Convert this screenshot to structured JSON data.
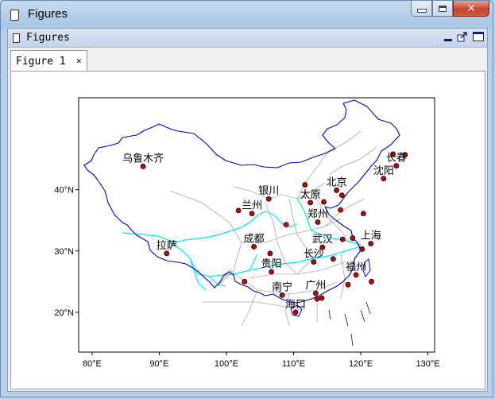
{
  "window": {
    "title": "Figures"
  },
  "document": {
    "title": "Figures"
  },
  "tabs": [
    {
      "label": "Figure 1",
      "close": "×"
    }
  ],
  "map": {
    "xticks": [
      "80°E",
      "90°E",
      "100°E",
      "110°E",
      "120°E",
      "130°E"
    ],
    "yticks": [
      "20°N",
      "30°N",
      "40°N"
    ],
    "lon_range": [
      78,
      131
    ],
    "lat_range": [
      13.5,
      55
    ],
    "colors": {
      "border": "#0000cc",
      "province": "#aaaaaa",
      "river": "#00e5ff",
      "city_fill": "#cc0000",
      "city_stroke": "#000000"
    },
    "labels": [
      {
        "text": "乌鲁木齐",
        "lon": 87.6,
        "lat": 43.8
      },
      {
        "text": "长春",
        "lon": 125.3,
        "lat": 43.9
      },
      {
        "text": "沈阳",
        "lon": 123.4,
        "lat": 41.8
      },
      {
        "text": "北京",
        "lon": 116.4,
        "lat": 39.9
      },
      {
        "text": "银川",
        "lon": 106.3,
        "lat": 38.5
      },
      {
        "text": "太原",
        "lon": 112.5,
        "lat": 37.9
      },
      {
        "text": "兰州",
        "lon": 103.8,
        "lat": 36.1
      },
      {
        "text": "郑州",
        "lon": 113.6,
        "lat": 34.7
      },
      {
        "text": "上海",
        "lon": 121.5,
        "lat": 31.2
      },
      {
        "text": "拉萨",
        "lon": 91.1,
        "lat": 29.6
      },
      {
        "text": "成都",
        "lon": 104.1,
        "lat": 30.7
      },
      {
        "text": "武汉",
        "lon": 114.3,
        "lat": 30.6
      },
      {
        "text": "长沙",
        "lon": 113.0,
        "lat": 28.2
      },
      {
        "text": "贵阳",
        "lon": 106.7,
        "lat": 26.6
      },
      {
        "text": "福州",
        "lon": 119.3,
        "lat": 26.1
      },
      {
        "text": "南宁",
        "lon": 108.3,
        "lat": 22.8
      },
      {
        "text": "广州",
        "lon": 113.3,
        "lat": 23.1
      },
      {
        "text": "海口",
        "lon": 110.3,
        "lat": 20.0
      }
    ],
    "points": [
      [
        125.3,
        43.9
      ],
      [
        124.8,
        45.8
      ],
      [
        123.4,
        41.8
      ],
      [
        126.6,
        45.7
      ],
      [
        87.6,
        43.8
      ],
      [
        116.4,
        39.9
      ],
      [
        117.2,
        39.1
      ],
      [
        114.5,
        38.0
      ],
      [
        112.5,
        37.9
      ],
      [
        111.7,
        40.8
      ],
      [
        106.3,
        38.5
      ],
      [
        103.8,
        36.1
      ],
      [
        101.8,
        36.6
      ],
      [
        108.9,
        34.3
      ],
      [
        113.6,
        34.7
      ],
      [
        117.0,
        36.7
      ],
      [
        121.5,
        31.2
      ],
      [
        118.8,
        32.1
      ],
      [
        120.2,
        30.3
      ],
      [
        117.3,
        31.9
      ],
      [
        114.3,
        30.6
      ],
      [
        113.0,
        28.2
      ],
      [
        115.9,
        28.7
      ],
      [
        119.3,
        26.1
      ],
      [
        121.6,
        25.0
      ],
      [
        91.1,
        29.6
      ],
      [
        104.1,
        30.7
      ],
      [
        106.5,
        29.6
      ],
      [
        106.7,
        26.6
      ],
      [
        102.7,
        25.0
      ],
      [
        108.3,
        22.8
      ],
      [
        113.3,
        23.1
      ],
      [
        114.2,
        22.3
      ],
      [
        113.5,
        22.2
      ],
      [
        110.3,
        20.0
      ],
      [
        118.1,
        24.5
      ],
      [
        120.4,
        36.1
      ]
    ]
  }
}
